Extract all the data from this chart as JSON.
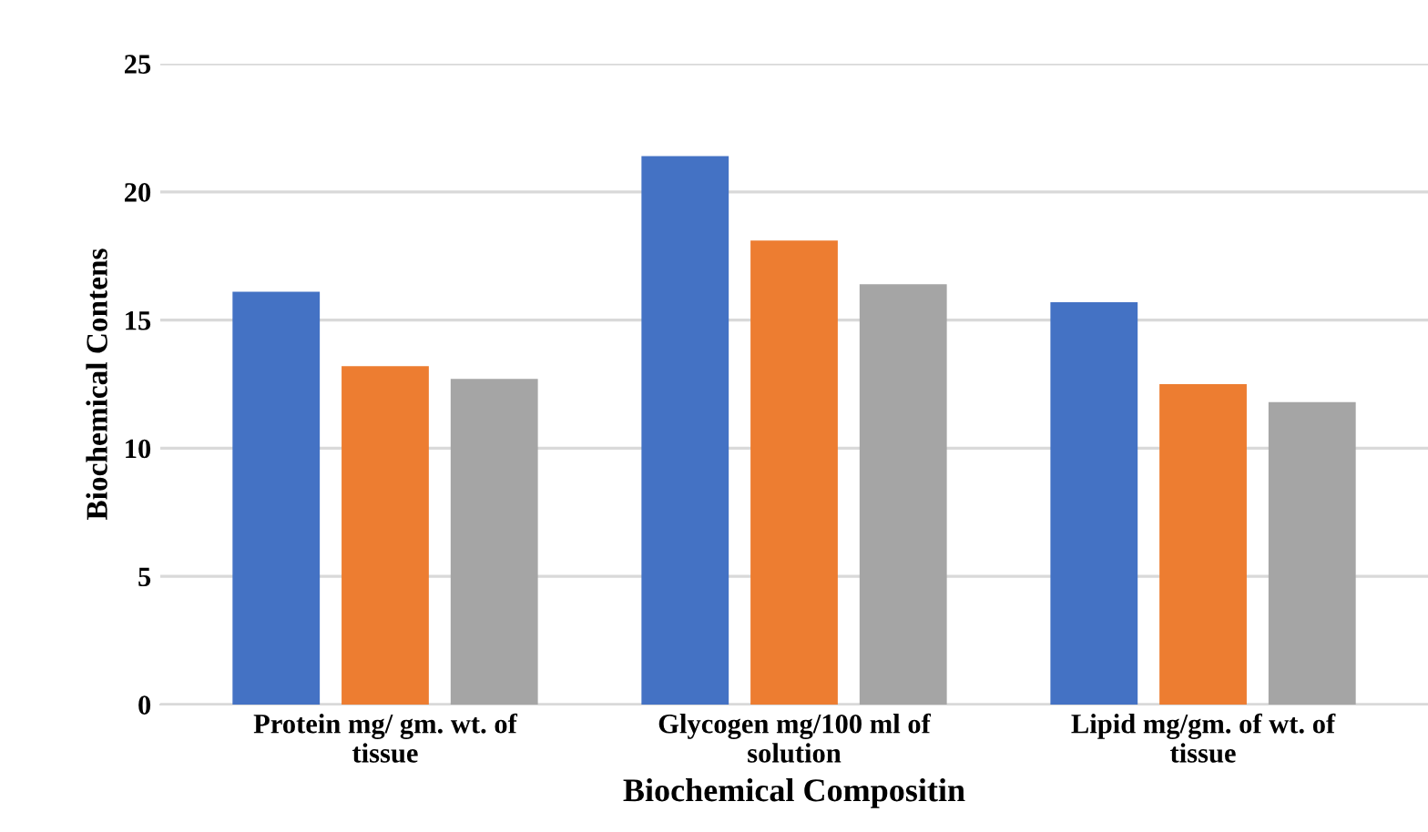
{
  "chart_data": {
    "type": "bar",
    "xlabel": "Biochemical Compositin",
    "ylabel": "Biochemical Contens",
    "categories": [
      "Protein mg/ gm. wt. of\ntissue",
      "Glycogen mg/100 ml of\nsolution",
      "Lipid mg/gm. of wt. of\ntissue"
    ],
    "series": [
      {
        "color": "#4472c4",
        "values": [
          16.1,
          21.4,
          15.7
        ]
      },
      {
        "color": "#ed7d31",
        "values": [
          13.2,
          18.1,
          12.5
        ]
      },
      {
        "color": "#a5a5a5",
        "values": [
          12.7,
          16.4,
          11.8
        ]
      }
    ],
    "ylim": [
      0,
      25
    ],
    "yticks": [
      0,
      5,
      10,
      15,
      20,
      25
    ],
    "grid": "y",
    "legend": false
  }
}
